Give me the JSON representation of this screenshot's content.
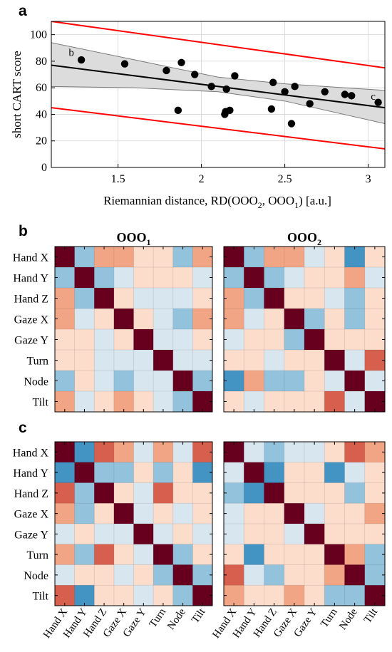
{
  "panel_labels": {
    "a": "a",
    "b": "b",
    "c": "c"
  },
  "colors": {
    "band": "#dcdcdc",
    "band_edge": "#7a7a7a",
    "pred": "#ff0000",
    "grid": "#d4d4d4",
    "diag": "#67001f"
  },
  "chart_data": [
    {
      "id": "a",
      "type": "scatter",
      "xlabel": "Riemannian distance, RD(OOO",
      "xlabel_sub1": "2",
      "xlabel_mid": ", OOO",
      "xlabel_sub2": "1",
      "xlabel_end": ") [a.u.]",
      "ylabel": "short CART score",
      "xlim": [
        1.1,
        3.1
      ],
      "ylim": [
        0,
        110
      ],
      "xticks": [
        1.5,
        2,
        2.5,
        3
      ],
      "xtick_labels": [
        "1.5",
        "2",
        "2.5",
        "3"
      ],
      "yticks": [
        0,
        20,
        40,
        60,
        80,
        100
      ],
      "ytick_labels": [
        "0",
        "20",
        "40",
        "60",
        "80",
        "100"
      ],
      "grid": true,
      "points": [
        [
          1.28,
          81
        ],
        [
          1.54,
          78
        ],
        [
          1.79,
          73
        ],
        [
          1.86,
          43
        ],
        [
          1.88,
          79
        ],
        [
          1.96,
          70
        ],
        [
          2.06,
          61
        ],
        [
          2.14,
          40
        ],
        [
          2.145,
          42
        ],
        [
          2.15,
          59
        ],
        [
          2.17,
          43
        ],
        [
          2.2,
          69
        ],
        [
          2.42,
          44
        ],
        [
          2.43,
          64
        ],
        [
          2.5,
          57
        ],
        [
          2.54,
          33
        ],
        [
          2.56,
          61
        ],
        [
          2.65,
          48
        ],
        [
          2.74,
          57
        ],
        [
          2.86,
          55
        ],
        [
          2.9,
          54
        ],
        [
          3.06,
          49
        ]
      ],
      "annotations": [
        {
          "text": "b",
          "x": 1.22,
          "y": 84
        },
        {
          "text": "c",
          "x": 3.03,
          "y": 51
        }
      ],
      "fit": {
        "x": [
          1.1,
          3.1
        ],
        "y": [
          77,
          45
        ]
      },
      "ci_band": {
        "x": [
          1.1,
          1.6,
          2.1,
          2.5,
          3.1
        ],
        "upper": [
          94,
          81,
          68,
          63,
          58
        ],
        "lower": [
          61,
          60,
          57,
          50,
          33
        ]
      },
      "prediction_upper": {
        "x": [
          1.1,
          3.1
        ],
        "y": [
          110,
          75
        ]
      },
      "prediction_lower": {
        "x": [
          1.1,
          3.1
        ],
        "y": [
          45,
          14
        ]
      }
    },
    {
      "id": "b",
      "type": "heatmap",
      "panels": [
        {
          "title": "OOO",
          "title_sub": "1"
        },
        {
          "title": "OOO",
          "title_sub": "2"
        }
      ],
      "labels": [
        "Hand X",
        "Hand Y",
        "Hand Z",
        "Gaze X",
        "Gaze Y",
        "Turn",
        "Node",
        "Tilt"
      ],
      "show_xlabels": false,
      "matrices": [
        [
          [
            1,
            -0.4,
            0.4,
            0.4,
            0.15,
            0.15,
            -0.35,
            0.4
          ],
          [
            -0.4,
            1,
            -0.4,
            -0.15,
            0.15,
            0.15,
            0.15,
            -0.15
          ],
          [
            0.4,
            -0.4,
            1,
            0.15,
            -0.15,
            -0.15,
            -0.15,
            0.15
          ],
          [
            0.4,
            -0.15,
            0.15,
            1,
            0.15,
            -0.15,
            -0.4,
            0.4
          ],
          [
            0.15,
            0.15,
            -0.15,
            0.15,
            1,
            -0.15,
            -0.15,
            0.15
          ],
          [
            0.15,
            0.15,
            -0.15,
            -0.15,
            -0.15,
            1,
            -0.15,
            -0.15
          ],
          [
            -0.35,
            0.15,
            -0.15,
            -0.4,
            -0.15,
            -0.15,
            1,
            -0.35
          ],
          [
            0.4,
            -0.15,
            0.15,
            0.4,
            0.15,
            -0.15,
            -0.35,
            1
          ]
        ],
        [
          [
            1,
            -0.4,
            0.4,
            0.4,
            -0.15,
            0.15,
            -0.75,
            0.15
          ],
          [
            -0.4,
            1,
            -0.4,
            -0.15,
            0.15,
            0.15,
            0.4,
            -0.15
          ],
          [
            0.4,
            -0.4,
            1,
            0.15,
            0.15,
            -0.15,
            -0.35,
            0.15
          ],
          [
            0.4,
            -0.15,
            0.15,
            1,
            -0.4,
            0.15,
            -0.35,
            0.15
          ],
          [
            -0.15,
            0.15,
            0.15,
            -0.4,
            1,
            0.15,
            0.15,
            0.15
          ],
          [
            0.15,
            0.15,
            -0.15,
            0.15,
            0.15,
            1,
            -0.15,
            0.6
          ],
          [
            -0.75,
            0.4,
            -0.35,
            -0.35,
            0.15,
            -0.15,
            1,
            -0.15
          ],
          [
            0.15,
            -0.15,
            0.15,
            0.15,
            0.15,
            0.6,
            -0.15,
            1
          ]
        ]
      ]
    },
    {
      "id": "c",
      "type": "heatmap",
      "labels": [
        "Hand X",
        "Hand Y",
        "Hand Z",
        "Gaze X",
        "Gaze Y",
        "Turn",
        "Node",
        "Tilt"
      ],
      "show_xlabels": true,
      "matrices": [
        [
          [
            1,
            -0.7,
            0.6,
            0.45,
            -0.15,
            0.45,
            -0.15,
            0.6
          ],
          [
            -0.7,
            1,
            -0.4,
            -0.4,
            0.15,
            -0.4,
            0.15,
            -0.7
          ],
          [
            0.6,
            -0.4,
            1,
            0.15,
            -0.15,
            0.6,
            0.15,
            0.15
          ],
          [
            0.45,
            -0.4,
            0.15,
            1,
            -0.15,
            0.15,
            -0.15,
            0.15
          ],
          [
            -0.15,
            0.15,
            -0.15,
            -0.15,
            1,
            -0.15,
            0.15,
            -0.15
          ],
          [
            0.45,
            -0.4,
            0.6,
            0.15,
            -0.15,
            1,
            -0.4,
            0.15
          ],
          [
            -0.15,
            0.15,
            0.15,
            -0.15,
            0.15,
            -0.4,
            1,
            -0.4
          ],
          [
            0.6,
            -0.7,
            0.15,
            0.15,
            -0.15,
            0.15,
            -0.4,
            1
          ]
        ],
        [
          [
            1,
            -0.15,
            -0.4,
            -0.15,
            -0.15,
            0.15,
            0.6,
            0.45
          ],
          [
            -0.15,
            1,
            -0.7,
            0.15,
            0.15,
            -0.7,
            -0.15,
            0.15
          ],
          [
            -0.4,
            -0.7,
            1,
            0.15,
            0.15,
            0.15,
            -0.4,
            0.15
          ],
          [
            -0.15,
            0.15,
            0.15,
            1,
            -0.15,
            0.15,
            0.15,
            0.45
          ],
          [
            -0.15,
            0.15,
            0.15,
            -0.15,
            1,
            0.15,
            0.15,
            0.15
          ],
          [
            0.15,
            -0.7,
            0.15,
            0.15,
            0.15,
            1,
            0.45,
            -0.4
          ],
          [
            0.6,
            -0.15,
            -0.4,
            0.15,
            0.15,
            0.45,
            1,
            -0.4
          ],
          [
            0.45,
            0.15,
            0.15,
            0.45,
            0.15,
            -0.4,
            -0.4,
            1
          ]
        ]
      ]
    }
  ]
}
